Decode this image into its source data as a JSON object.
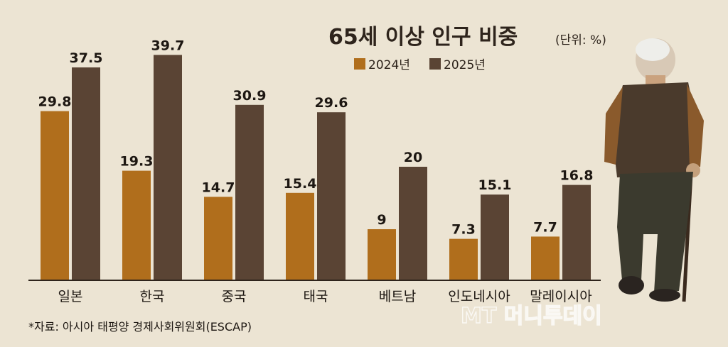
{
  "chart_data": {
    "type": "bar",
    "title": "65세 이상 인구 비중",
    "unit": "(단위: %)",
    "categories": [
      "일본",
      "한국",
      "중국",
      "태국",
      "베트남",
      "인도네시아",
      "말레이시아"
    ],
    "series": [
      {
        "name": "2024년",
        "color": "#b06e1c",
        "values": [
          29.8,
          19.3,
          14.7,
          15.4,
          9,
          7.3,
          7.7
        ]
      },
      {
        "name": "2025년",
        "color": "#5a4434",
        "values": [
          37.5,
          39.7,
          30.9,
          29.6,
          20,
          15.1,
          16.8
        ]
      }
    ],
    "ylim": [
      0,
      40
    ],
    "legend_position": "top-right",
    "grid": false
  },
  "source": "*자료: 아시아 태평양 경제사회위원회(ESCAP)",
  "watermark": "MT 머니투데이",
  "colors": {
    "background": "#ece4d3",
    "baseline": "#2e241c"
  }
}
